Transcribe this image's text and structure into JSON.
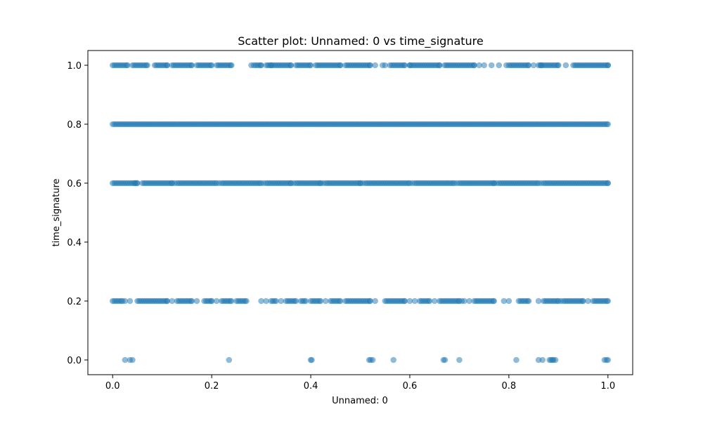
{
  "chart_data": {
    "type": "scatter",
    "title": "Scatter plot: Unnamed: 0 vs time_signature",
    "xlabel": "Unnamed: 0",
    "ylabel": "time_signature",
    "xlim": [
      -0.05,
      1.05
    ],
    "ylim": [
      -0.05,
      1.05
    ],
    "xticks": [
      "0.0",
      "0.2",
      "0.4",
      "0.6",
      "0.8",
      "1.0"
    ],
    "yticks": [
      "0.0",
      "0.2",
      "0.4",
      "0.6",
      "0.8",
      "1.0"
    ],
    "grid": false,
    "marker_color": "#1f77b4",
    "marker_alpha": 0.5,
    "series": [
      {
        "y": 1.0,
        "x_ranges": [
          [
            0.0,
            0.03
          ],
          [
            0.04,
            0.07
          ],
          [
            0.085,
            0.11
          ],
          [
            0.12,
            0.16
          ],
          [
            0.17,
            0.2
          ],
          [
            0.21,
            0.24
          ],
          [
            0.285,
            0.3
          ],
          [
            0.31,
            0.36
          ],
          [
            0.37,
            0.4
          ],
          [
            0.41,
            0.46
          ],
          [
            0.47,
            0.52
          ],
          [
            0.56,
            0.59
          ],
          [
            0.6,
            0.66
          ],
          [
            0.67,
            0.73
          ],
          [
            0.8,
            0.84
          ],
          [
            0.86,
            0.9
          ],
          [
            0.93,
            1.0
          ]
        ],
        "x_points": [
          0.28,
          0.32,
          0.53,
          0.545,
          0.55,
          0.6,
          0.74,
          0.75,
          0.765,
          0.78,
          0.795,
          0.85,
          0.865,
          0.915
        ]
      },
      {
        "y": 0.8,
        "x_ranges": [
          [
            0.0,
            1.0
          ]
        ],
        "x_points": []
      },
      {
        "y": 0.6,
        "x_ranges": [
          [
            0.0,
            0.05
          ],
          [
            0.06,
            0.12
          ],
          [
            0.13,
            0.21
          ],
          [
            0.22,
            0.3
          ],
          [
            0.31,
            0.36
          ],
          [
            0.37,
            0.42
          ],
          [
            0.43,
            0.5
          ],
          [
            0.51,
            0.6
          ],
          [
            0.61,
            0.69
          ],
          [
            0.7,
            0.77
          ],
          [
            0.78,
            0.86
          ],
          [
            0.87,
            1.0
          ]
        ],
        "x_points": [
          0.045,
          0.125,
          0.215,
          0.305,
          0.365,
          0.425,
          0.505,
          0.605,
          0.695,
          0.775,
          0.865
        ]
      },
      {
        "y": 0.2,
        "x_ranges": [
          [
            0.0,
            0.02
          ],
          [
            0.05,
            0.11
          ],
          [
            0.13,
            0.16
          ],
          [
            0.185,
            0.2
          ],
          [
            0.22,
            0.24
          ],
          [
            0.25,
            0.27
          ],
          [
            0.32,
            0.33
          ],
          [
            0.35,
            0.37
          ],
          [
            0.38,
            0.39
          ],
          [
            0.4,
            0.42
          ],
          [
            0.44,
            0.46
          ],
          [
            0.47,
            0.52
          ],
          [
            0.55,
            0.59
          ],
          [
            0.62,
            0.64
          ],
          [
            0.66,
            0.7
          ],
          [
            0.73,
            0.77
          ],
          [
            0.82,
            0.84
          ],
          [
            0.87,
            0.9
          ],
          [
            0.91,
            0.95
          ],
          [
            0.97,
            1.0
          ]
        ],
        "x_points": [
          0.025,
          0.035,
          0.12,
          0.17,
          0.21,
          0.3,
          0.31,
          0.34,
          0.43,
          0.53,
          0.6,
          0.61,
          0.65,
          0.705,
          0.71,
          0.72,
          0.79,
          0.8,
          0.86,
          0.905,
          0.96
        ]
      },
      {
        "y": 0.0,
        "x_ranges": [],
        "x_points": [
          0.025,
          0.035,
          0.04,
          0.235,
          0.4,
          0.402,
          0.518,
          0.521,
          0.525,
          0.567,
          0.668,
          0.671,
          0.7,
          0.815,
          0.86,
          0.868,
          0.882,
          0.885,
          0.888,
          0.89,
          0.894,
          0.993,
          0.997,
          1.0
        ]
      }
    ]
  }
}
